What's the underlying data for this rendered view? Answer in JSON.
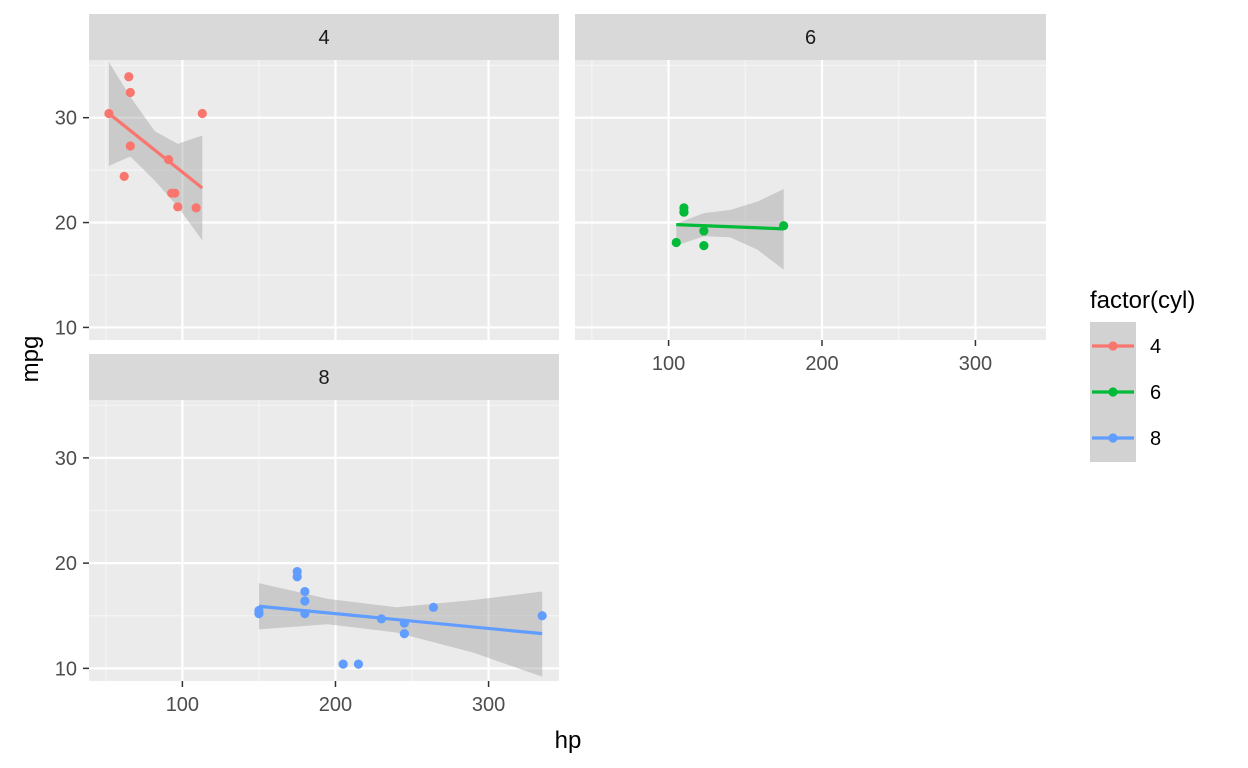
{
  "chart_data": {
    "type": "scatter",
    "title": "",
    "xlabel": "hp",
    "ylabel": "mpg",
    "facet_var": "factor(cyl)",
    "xlim": [
      39,
      346
    ],
    "ylim": [
      8.8,
      35.5
    ],
    "x_ticks": [
      100,
      200,
      300
    ],
    "y_ticks": [
      10,
      20,
      30
    ],
    "grid": true,
    "smooth": "lm with confidence band",
    "legend": {
      "title": "factor(cyl)",
      "position": "right",
      "entries": [
        "4",
        "6",
        "8"
      ]
    },
    "panels": [
      {
        "label": "4",
        "color": "#F8766D",
        "points": [
          [
            93,
            22.8
          ],
          [
            62,
            24.4
          ],
          [
            95,
            22.8
          ],
          [
            66,
            32.4
          ],
          [
            52,
            30.4
          ],
          [
            65,
            33.9
          ],
          [
            97,
            21.5
          ],
          [
            66,
            27.3
          ],
          [
            91,
            26.0
          ],
          [
            113,
            30.4
          ],
          [
            109,
            21.4
          ]
        ],
        "fit": {
          "x": [
            52,
            113
          ],
          "y": [
            30.4,
            23.3
          ]
        },
        "band": {
          "x": [
            52,
            66,
            82,
            97,
            113
          ],
          "upper": [
            35.3,
            32.0,
            28.7,
            27.5,
            28.3
          ],
          "lower": [
            25.4,
            26.3,
            24.0,
            21.5,
            18.3
          ]
        }
      },
      {
        "label": "6",
        "color": "#00BA38",
        "points": [
          [
            110,
            21.0
          ],
          [
            110,
            21.4
          ],
          [
            110,
            21.0
          ],
          [
            105,
            18.1
          ],
          [
            123,
            19.2
          ],
          [
            123,
            17.8
          ],
          [
            175,
            19.7
          ]
        ],
        "fit": {
          "x": [
            105,
            175
          ],
          "y": [
            19.8,
            19.4
          ]
        },
        "band": {
          "x": [
            105,
            123,
            140,
            158,
            175
          ],
          "upper": [
            19.9,
            20.9,
            21.2,
            22.0,
            23.2
          ],
          "lower": [
            17.8,
            18.7,
            18.6,
            17.4,
            15.5
          ]
        }
      },
      {
        "label": "8",
        "color": "#619CFF",
        "points": [
          [
            175,
            18.7
          ],
          [
            245,
            14.3
          ],
          [
            180,
            16.4
          ],
          [
            180,
            17.3
          ],
          [
            180,
            15.2
          ],
          [
            205,
            10.4
          ],
          [
            215,
            10.4
          ],
          [
            230,
            14.7
          ],
          [
            150,
            15.5
          ],
          [
            150,
            15.2
          ],
          [
            245,
            13.3
          ],
          [
            175,
            19.2
          ],
          [
            264,
            15.8
          ],
          [
            335,
            15.0
          ]
        ],
        "fit": {
          "x": [
            150,
            335
          ],
          "y": [
            15.9,
            13.3
          ]
        },
        "band": {
          "x": [
            150,
            195,
            240,
            290,
            335
          ],
          "upper": [
            18.1,
            16.6,
            15.8,
            16.5,
            17.3
          ],
          "lower": [
            13.7,
            14.2,
            13.4,
            11.5,
            9.2
          ]
        }
      }
    ]
  }
}
